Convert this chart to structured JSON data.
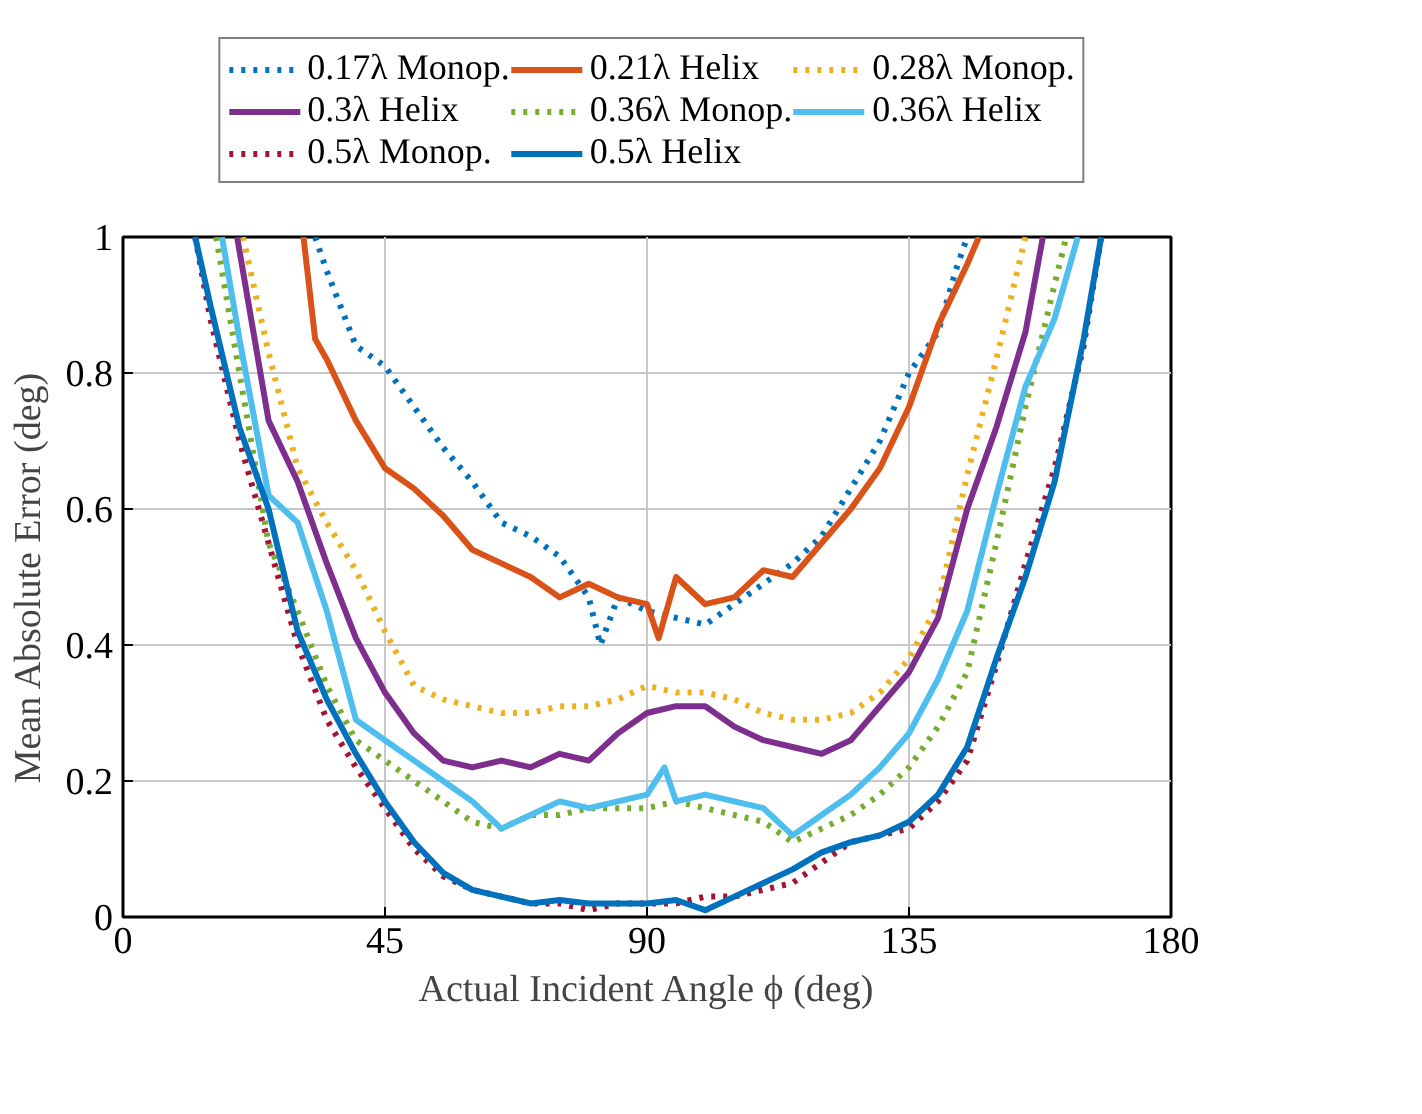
{
  "chart_data": {
    "type": "line",
    "xlabel": "Actual Incident Angle ϕ (deg)",
    "ylabel": "Mean Absolute Error (deg)",
    "xlim": [
      0,
      180
    ],
    "ylim": [
      0,
      1
    ],
    "xticks": [
      0,
      45,
      90,
      135,
      180
    ],
    "yticks": [
      0,
      0.2,
      0.4,
      0.6,
      0.8,
      1
    ],
    "grid": true,
    "legend": "top",
    "marker": "none",
    "series": [
      {
        "name": "0.17λ Monop.",
        "color": "#0072bd",
        "line_style": "dotted",
        "x": [
          33,
          35,
          40,
          45,
          50,
          55,
          60,
          65,
          70,
          75,
          80,
          82,
          85,
          90,
          95,
          100,
          105,
          110,
          115,
          120,
          125,
          130,
          135,
          140,
          143,
          145
        ],
        "values": [
          1,
          0.95,
          0.84,
          0.81,
          0.75,
          0.69,
          0.64,
          0.58,
          0.56,
          0.53,
          0.47,
          0.4,
          0.47,
          0.45,
          0.44,
          0.43,
          0.46,
          0.49,
          0.52,
          0.56,
          0.63,
          0.7,
          0.8,
          0.86,
          0.95,
          1
        ]
      },
      {
        "name": "0.21λ Helix",
        "color": "#d95319",
        "line_style": "solid",
        "x": [
          31,
          33,
          35,
          40,
          45,
          50,
          55,
          60,
          65,
          70,
          75,
          80,
          85,
          90,
          92,
          95,
          100,
          105,
          110,
          115,
          120,
          125,
          130,
          135,
          140,
          145,
          147
        ],
        "values": [
          1,
          0.85,
          0.82,
          0.73,
          0.66,
          0.63,
          0.59,
          0.54,
          0.52,
          0.5,
          0.47,
          0.49,
          0.47,
          0.46,
          0.41,
          0.5,
          0.46,
          0.47,
          0.51,
          0.5,
          0.55,
          0.6,
          0.66,
          0.75,
          0.87,
          0.96,
          1
        ]
      },
      {
        "name": "0.28λ Monop.",
        "color": "#edb120",
        "line_style": "dotted",
        "x": [
          20.6,
          25,
          30,
          35,
          40,
          45,
          50,
          55,
          60,
          65,
          70,
          75,
          80,
          85,
          90,
          95,
          100,
          105,
          110,
          115,
          120,
          125,
          130,
          135,
          140,
          145,
          150,
          155
        ],
        "values": [
          1,
          0.83,
          0.66,
          0.58,
          0.51,
          0.42,
          0.34,
          0.32,
          0.31,
          0.3,
          0.3,
          0.31,
          0.31,
          0.32,
          0.34,
          0.33,
          0.33,
          0.32,
          0.3,
          0.29,
          0.29,
          0.3,
          0.33,
          0.38,
          0.46,
          0.65,
          0.82,
          1
        ]
      },
      {
        "name": "0.3λ Helix",
        "color": "#7e2f8e",
        "line_style": "solid",
        "x": [
          19.6,
          25,
          30,
          35,
          40,
          45,
          50,
          55,
          60,
          65,
          70,
          75,
          80,
          85,
          90,
          95,
          100,
          105,
          110,
          115,
          120,
          125,
          130,
          135,
          140,
          145,
          150,
          155,
          158
        ],
        "values": [
          1,
          0.73,
          0.64,
          0.52,
          0.41,
          0.33,
          0.27,
          0.23,
          0.22,
          0.23,
          0.22,
          0.24,
          0.23,
          0.27,
          0.3,
          0.31,
          0.31,
          0.28,
          0.26,
          0.25,
          0.24,
          0.26,
          0.31,
          0.36,
          0.44,
          0.6,
          0.72,
          0.86,
          1
        ]
      },
      {
        "name": "0.36λ Monop.",
        "color": "#77ac30",
        "line_style": "dotted",
        "x": [
          16,
          20,
          25,
          30,
          35,
          40,
          45,
          50,
          55,
          60,
          65,
          70,
          75,
          80,
          85,
          90,
          95,
          100,
          105,
          110,
          115,
          120,
          125,
          130,
          135,
          140,
          145,
          150,
          155,
          160,
          162
        ],
        "values": [
          1,
          0.8,
          0.55,
          0.45,
          0.34,
          0.26,
          0.23,
          0.2,
          0.17,
          0.14,
          0.13,
          0.15,
          0.15,
          0.16,
          0.16,
          0.16,
          0.17,
          0.16,
          0.15,
          0.14,
          0.11,
          0.13,
          0.15,
          0.18,
          0.22,
          0.28,
          0.36,
          0.55,
          0.75,
          0.93,
          1
        ]
      },
      {
        "name": "0.36λ Helix",
        "color": "#4dbeee",
        "line_style": "solid",
        "x": [
          17,
          20,
          25,
          30,
          35,
          40,
          45,
          50,
          55,
          60,
          65,
          70,
          75,
          80,
          85,
          90,
          93,
          95,
          100,
          105,
          110,
          115,
          120,
          125,
          130,
          135,
          140,
          145,
          150,
          155,
          160,
          164
        ],
        "values": [
          1,
          0.85,
          0.62,
          0.58,
          0.45,
          0.29,
          0.26,
          0.23,
          0.2,
          0.17,
          0.13,
          0.15,
          0.17,
          0.16,
          0.17,
          0.18,
          0.22,
          0.17,
          0.18,
          0.17,
          0.16,
          0.12,
          0.15,
          0.18,
          0.22,
          0.27,
          0.35,
          0.45,
          0.62,
          0.78,
          0.88,
          1
        ]
      },
      {
        "name": "0.5λ Monop.",
        "color": "#a2142f",
        "line_style": "dotted",
        "x": [
          12.4,
          15,
          20,
          25,
          30,
          35,
          40,
          45,
          50,
          55,
          60,
          65,
          70,
          75,
          80,
          85,
          90,
          95,
          100,
          105,
          110,
          115,
          120,
          125,
          130,
          135,
          140,
          145,
          150,
          155,
          160,
          165,
          168
        ],
        "values": [
          1,
          0.88,
          0.7,
          0.55,
          0.4,
          0.29,
          0.22,
          0.16,
          0.1,
          0.06,
          0.04,
          0.03,
          0.02,
          0.02,
          0.01,
          0.02,
          0.02,
          0.02,
          0.03,
          0.03,
          0.04,
          0.05,
          0.08,
          0.11,
          0.12,
          0.13,
          0.17,
          0.23,
          0.37,
          0.52,
          0.66,
          0.84,
          1
        ]
      },
      {
        "name": "0.5λ Helix",
        "color": "#0072bd",
        "line_style": "solid",
        "x": [
          12.4,
          15,
          20,
          25,
          30,
          35,
          40,
          45,
          50,
          55,
          60,
          65,
          70,
          75,
          80,
          85,
          90,
          95,
          100,
          105,
          110,
          115,
          120,
          125,
          130,
          135,
          140,
          145,
          150,
          155,
          160,
          165,
          168
        ],
        "values": [
          1,
          0.9,
          0.72,
          0.6,
          0.42,
          0.32,
          0.24,
          0.17,
          0.11,
          0.065,
          0.04,
          0.03,
          0.02,
          0.025,
          0.02,
          0.02,
          0.02,
          0.025,
          0.01,
          0.03,
          0.05,
          0.07,
          0.095,
          0.11,
          0.12,
          0.14,
          0.18,
          0.25,
          0.38,
          0.5,
          0.64,
          0.85,
          1
        ]
      }
    ]
  }
}
